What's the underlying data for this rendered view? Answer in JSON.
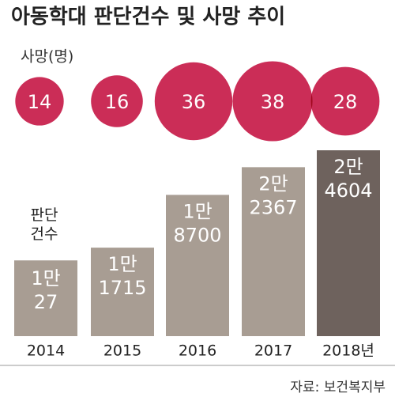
{
  "chart_data": {
    "type": "bar",
    "title": "아동학대 판단건수 및 사망 추이",
    "categories": [
      "2014",
      "2015",
      "2016",
      "2017",
      "2018년"
    ],
    "values": [
      10027,
      11715,
      18700,
      22367,
      24604
    ],
    "value_labels": [
      "1만\n27",
      "1만\n1715",
      "1만\n8700",
      "2만\n2367",
      "2만\n4604"
    ],
    "value_label_name": "판단\n건수",
    "colors": [
      "#a89d93",
      "#a89d93",
      "#a89d93",
      "#a89d93",
      "#6e625d"
    ],
    "bubble_label": "사망(명)",
    "bubble_values": [
      14,
      16,
      36,
      38,
      28
    ],
    "bubble_color": "#c8224e",
    "source": "자료: 보건복지부"
  }
}
